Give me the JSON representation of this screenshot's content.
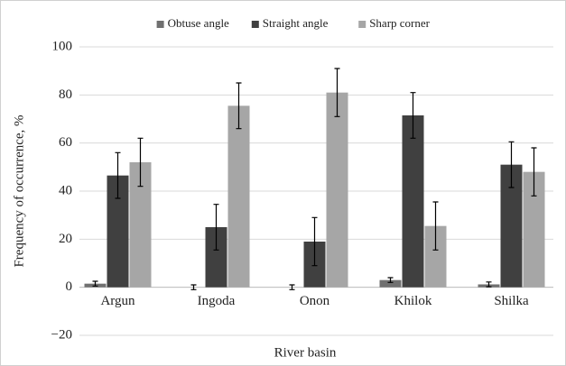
{
  "chart_data": {
    "type": "bar",
    "xlabel": "River basin",
    "ylabel": "Frequency of occurrence, %",
    "categories": [
      "Argun",
      "Ingoda",
      "Onon",
      "Khilok",
      "Shilka"
    ],
    "series": [
      {
        "name": "Obtuse angle",
        "color": "#707070",
        "values": [
          1.5,
          0,
          0,
          3,
          1.2
        ],
        "errors": [
          1,
          1,
          1,
          1,
          1
        ]
      },
      {
        "name": "Straight angle",
        "color": "#404040",
        "values": [
          46.5,
          25,
          19,
          71.5,
          51
        ],
        "errors": [
          9.5,
          9.5,
          10,
          9.5,
          9.5
        ]
      },
      {
        "name": "Sharp corner",
        "color": "#a6a6a6",
        "values": [
          52,
          75.5,
          81,
          25.5,
          48
        ],
        "errors": [
          10,
          9.5,
          10,
          10,
          10
        ]
      }
    ],
    "ylim": [
      -20,
      100
    ],
    "yticks": [
      {
        "value": -20,
        "label": "−20"
      },
      0,
      20,
      40,
      60,
      80,
      100
    ],
    "grid": true,
    "legend": "top"
  }
}
